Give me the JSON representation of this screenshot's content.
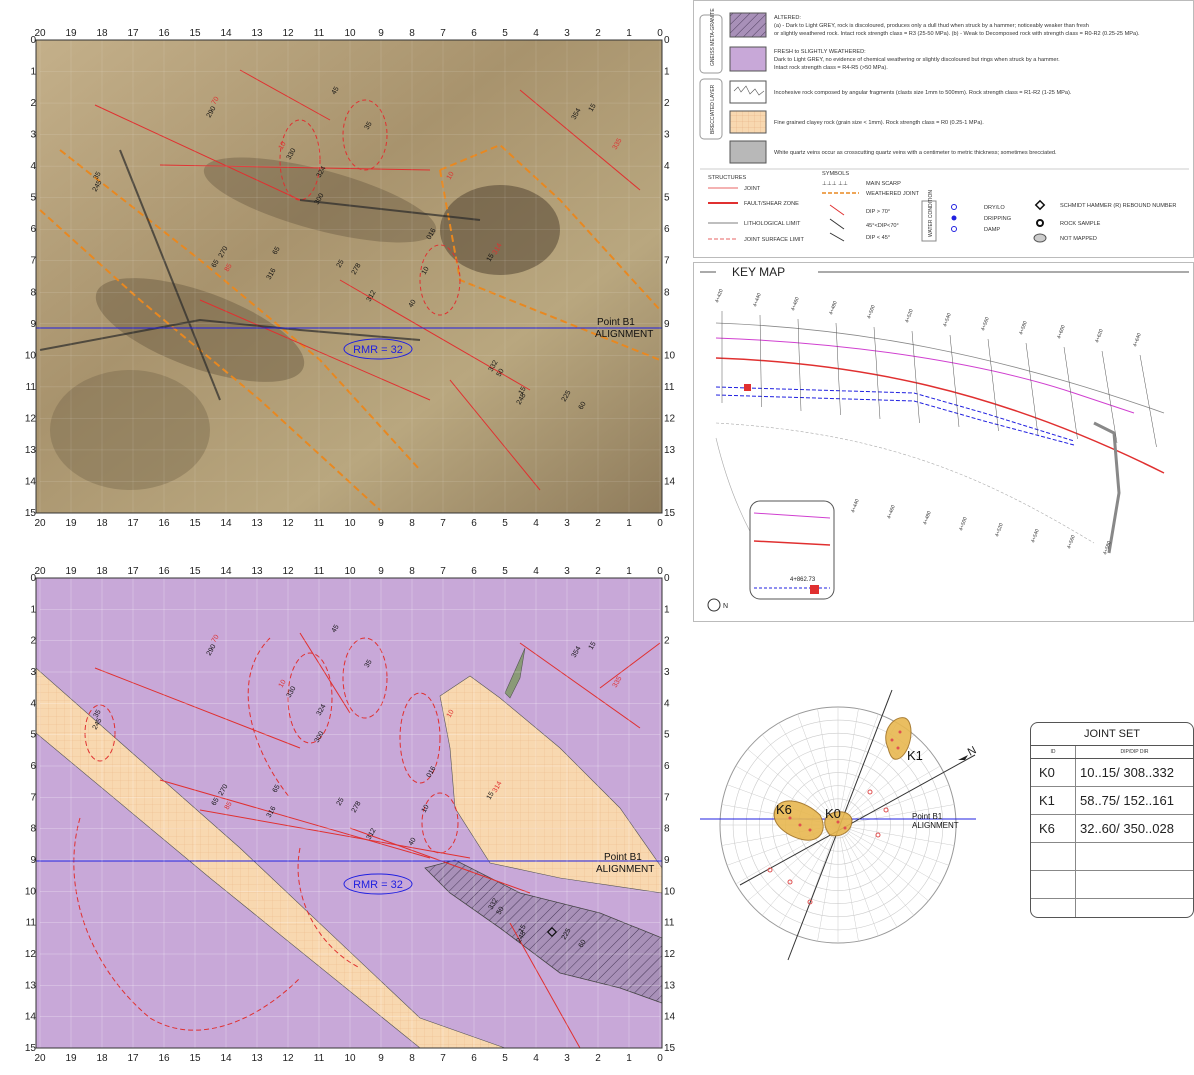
{
  "map": {
    "x_ticks": [
      "20",
      "19",
      "18",
      "17",
      "16",
      "15",
      "14",
      "13",
      "12",
      "11",
      "10",
      "9",
      "8",
      "7",
      "6",
      "5",
      "4",
      "3",
      "2",
      "1",
      "0"
    ],
    "y_ticks": [
      "0",
      "1",
      "2",
      "3",
      "4",
      "5",
      "6",
      "7",
      "8",
      "9",
      "10",
      "11",
      "12",
      "13",
      "14",
      "15"
    ],
    "rmr_label": "RMR = 32",
    "point_label": "Point B1",
    "alignment_label": "ALIGNMENT",
    "dip_labels": [
      "10",
      "330",
      "35",
      "324",
      "45",
      "290",
      "70",
      "245",
      "35",
      "300",
      "65",
      "270",
      "85",
      "316",
      "65",
      "278",
      "25",
      "312",
      "10",
      "332",
      "50",
      "10",
      "016",
      "15",
      "314",
      "40",
      "248",
      "15",
      "225",
      "60",
      "335",
      "15",
      "354"
    ]
  },
  "legend": {
    "altered_title": "ALTERED:",
    "altered_text_1": "(a) - Dark to Light GREY, rock is discoloured, produces only a dull thud when struck by a hammer; noticeably weaker than fresh",
    "altered_text_2": "or slightly weathered rock. Intact rock strength class = R3 (25-50 MPa). (b) - Weak to Decomposed rock with strength class = R0-R2 (0.25-25 MPa).",
    "fresh_title": "FRESH to SLIGHTLY WEATHERED:",
    "fresh_text_1": "Dark to Light GREY, no evidence of chemical weathering or slightly discoloured but rings when struck by a hammer.",
    "fresh_text_2": "Intact rock strength class = R4-R5 (>50 MPa).",
    "gneiss_label": "GNEISS META-GRANITE",
    "brecciated_label": "BRECCIATED LAYER",
    "incohesive_text": "Incohesive rock composed by angular fragments (clasts size 1mm to 500mm). Rock strength class = R1-R2 (1-25 MPa).",
    "fine_text": "Fine grained clayey rock (grain size < 1mm). Rock strength class = R0 (0.25-1 MPa).",
    "quartz_text": "White quartz veins occur as crosscutting quartz veins with a centimeter to metric thickness; sometimes brecciated.",
    "structures_title": "STRUCTURES",
    "symbols_title": "SYMBOLS",
    "s_joint": "JOINT",
    "s_fault": "FAULT/SHEAR ZONE",
    "s_litho": "LITHOLOGICAL LIMIT",
    "s_joint_surface": "JOINT SURFACE LIMIT",
    "sym_main_scarp": "MAIN SCARP",
    "sym_weathered": "WEATHERED JOINT",
    "sym_dip1": "DIP > 70°",
    "sym_dip2": "45°<DIP<70°",
    "sym_dip3": "DIP < 45°",
    "sym_water": "WATER CONDITION",
    "sym_dry": "DRY/LO",
    "sym_dripping": "DRIPPING",
    "sym_damp": "DAMP",
    "sym_schmidt": "SCHMIDT HAMMER (R) REBOUND NUMBER",
    "sym_rock_sample": "ROCK SAMPLE",
    "sym_not_mapped": "NOT MAPPED"
  },
  "keymap": {
    "title": "KEY MAP",
    "chainage_labels": [
      "4+420",
      "4+440",
      "4+460",
      "4+480",
      "4+500",
      "4+520",
      "4+540",
      "4+560",
      "4+580",
      "4+600",
      "4+620",
      "4+640"
    ],
    "lower_labels": [
      "4+440",
      "4+460",
      "4+480",
      "4+500",
      "4+520",
      "4+540",
      "4+560",
      "4+580"
    ],
    "inset_chainage": "4+862.73",
    "north": "N"
  },
  "stereonet": {
    "point_label": "Point B1",
    "alignment_label": "ALIGNMENT",
    "sets": [
      "K1",
      "K6",
      "K0"
    ],
    "north": "N"
  },
  "joint_set": {
    "title": "JOINT SET",
    "col1": "ID",
    "col2": "DIP/DIP DIR",
    "rows": [
      {
        "id": "K0",
        "value": "10..15/ 308..332"
      },
      {
        "id": "K1",
        "value": "58..75/ 152..161"
      },
      {
        "id": "K6",
        "value": "32..60/ 350..028"
      },
      {
        "id": "",
        "value": ""
      },
      {
        "id": "",
        "value": ""
      },
      {
        "id": "",
        "value": ""
      }
    ]
  },
  "colors": {
    "purple": "#c8a8d8",
    "sand": "#f8d8b0",
    "red": "#e03030",
    "blue": "#2020e0",
    "orange": "#e88820"
  }
}
